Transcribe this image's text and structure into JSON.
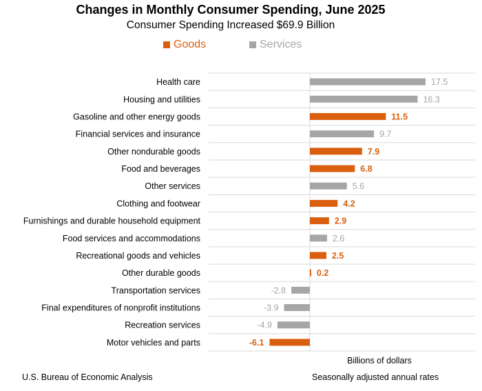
{
  "chart_data": {
    "type": "bar",
    "orientation": "horizontal",
    "title": "Changes in Monthly Consumer Spending, June 2025",
    "subtitle": "Consumer Spending Increased $69.9 Billion",
    "xlabel": "Billions of dollars",
    "xlim": [
      -7,
      26
    ],
    "grid": "horizontal gridlines between categories",
    "legend_placement": "top-center",
    "legend": [
      {
        "name": "Goods",
        "color": "#d95f0e"
      },
      {
        "name": "Services",
        "color": "#a6a6a6"
      }
    ],
    "categories": [
      "Health care",
      "Housing and utilities",
      "Gasoline and other energy goods",
      "Financial services and insurance",
      "Other nondurable goods",
      "Food and beverages",
      "Other services",
      "Clothing and footwear",
      "Furnishings and durable household equipment",
      "Food services and accommodations",
      "Recreational goods and vehicles",
      "Other durable goods",
      "Transportation services",
      "Final expenditures of nonprofit institutions",
      "Recreation services",
      "Motor vehicles and parts"
    ],
    "values": [
      17.5,
      16.3,
      11.5,
      9.7,
      7.9,
      6.8,
      5.6,
      4.2,
      2.9,
      2.6,
      2.5,
      0.2,
      -2.8,
      -3.9,
      -4.9,
      -6.1
    ],
    "value_labels": [
      "17.5",
      "16.3",
      "11.5",
      "9.7",
      "7.9",
      "6.8",
      "5.6",
      "4.2",
      "2.9",
      "2.6",
      "2.5",
      "0.2",
      "-2.8",
      "-3.9",
      "-4.9",
      "-6.1"
    ],
    "series_type": [
      "Services",
      "Services",
      "Goods",
      "Services",
      "Goods",
      "Goods",
      "Services",
      "Goods",
      "Goods",
      "Services",
      "Goods",
      "Goods",
      "Services",
      "Services",
      "Services",
      "Goods"
    ]
  },
  "footer": {
    "source": "U.S. Bureau of Economic Analysis",
    "note": "Seasonally adjusted annual rates"
  }
}
